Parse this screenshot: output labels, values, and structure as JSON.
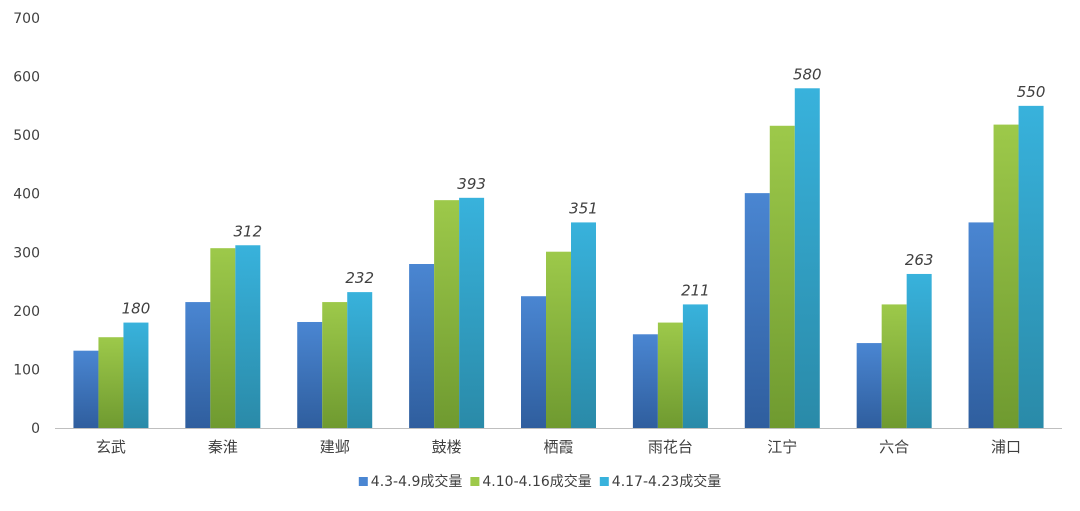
{
  "chart_data": {
    "type": "bar",
    "title": "",
    "xlabel": "",
    "ylabel": "",
    "ylim": [
      0,
      700
    ],
    "yticks": [
      0,
      100,
      200,
      300,
      400,
      500,
      600,
      700
    ],
    "grid": false,
    "legend_position": "bottom",
    "categories": [
      "玄武",
      "秦淮",
      "建邺",
      "鼓楼",
      "栖霞",
      "雨花台",
      "江宁",
      "六合",
      "浦口"
    ],
    "series": [
      {
        "name": "4.3-4.9成交量",
        "color_top": "#4a86d2",
        "color_bottom": "#2f5e9e",
        "values": [
          132,
          215,
          181,
          280,
          225,
          160,
          401,
          145,
          351
        ]
      },
      {
        "name": "4.10-4.16成交量",
        "color_top": "#9dc94a",
        "color_bottom": "#6f9a30",
        "values": [
          155,
          307,
          215,
          389,
          301,
          180,
          516,
          211,
          518
        ]
      },
      {
        "name": "4.17-4.23成交量",
        "color_top": "#38b2dc",
        "color_bottom": "#2a8aa8",
        "values": [
          180,
          312,
          232,
          393,
          351,
          211,
          580,
          263,
          550
        ],
        "data_labels": true
      }
    ]
  }
}
